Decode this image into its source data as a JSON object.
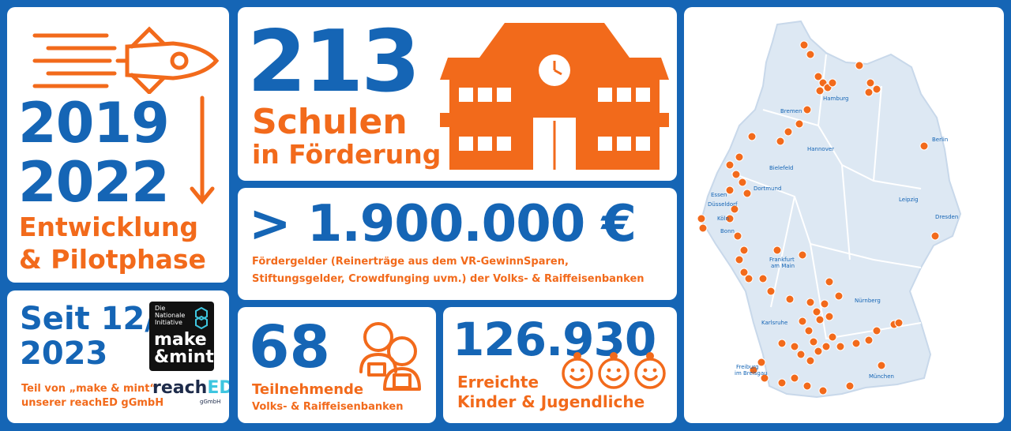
{
  "colors": {
    "blue": "#1565b5",
    "orange": "#f26a1b",
    "map_fill": "#dde8f3",
    "map_line": "#ffffff"
  },
  "timeline": {
    "year_start": "2019",
    "year_end": "2022",
    "line1": "Entwicklung",
    "line2": "& Pilotphase",
    "icon": "rocket-icon"
  },
  "partner": {
    "since_line1": "Seit 12/",
    "since_line2": "2023",
    "logo_small1": "Die",
    "logo_small2": "Nationale",
    "logo_small3": "Initiative",
    "logo_make": "make",
    "logo_mint": "&mint",
    "note_line1": "Teil von „make & mint“",
    "note_line2": "unserer reachED gGmbH",
    "brand_reach": "reach",
    "brand_ed": "ED",
    "brand_sub": "gGmbH"
  },
  "schools": {
    "number": "213",
    "label1": "Schulen",
    "label2": "in Förderung",
    "icon": "school-building-icon"
  },
  "funding": {
    "amount": "> 1.900.000 €",
    "desc1": "Fördergelder (Reinerträge aus dem VR-GewinnSparen,",
    "desc2": "Stiftungsgelder, Crowdfunging uvm.) der Volks- & Raiffeisenbanken"
  },
  "banks": {
    "number": "68",
    "label1": "Teilnehmende",
    "label2": "Volks- & Raiffeisenbanken",
    "icon": "people-icon"
  },
  "kids": {
    "number": "126.930",
    "label1": "Erreichte",
    "label2": "Kinder & Jugendliche",
    "icon": "children-faces-icon"
  },
  "map": {
    "cities": [
      "Hamburg",
      "Bremen",
      "Hannover",
      "Berlin",
      "Bielefeld",
      "Dortmund",
      "Essen",
      "Düsseldorf",
      "Köln",
      "Bonn",
      "Leipzig",
      "Dresden",
      "Frankfurt",
      "am Main",
      "Nürnberg",
      "Karlsruhe",
      "Freiburg",
      "im Breisgau",
      "München"
    ]
  }
}
